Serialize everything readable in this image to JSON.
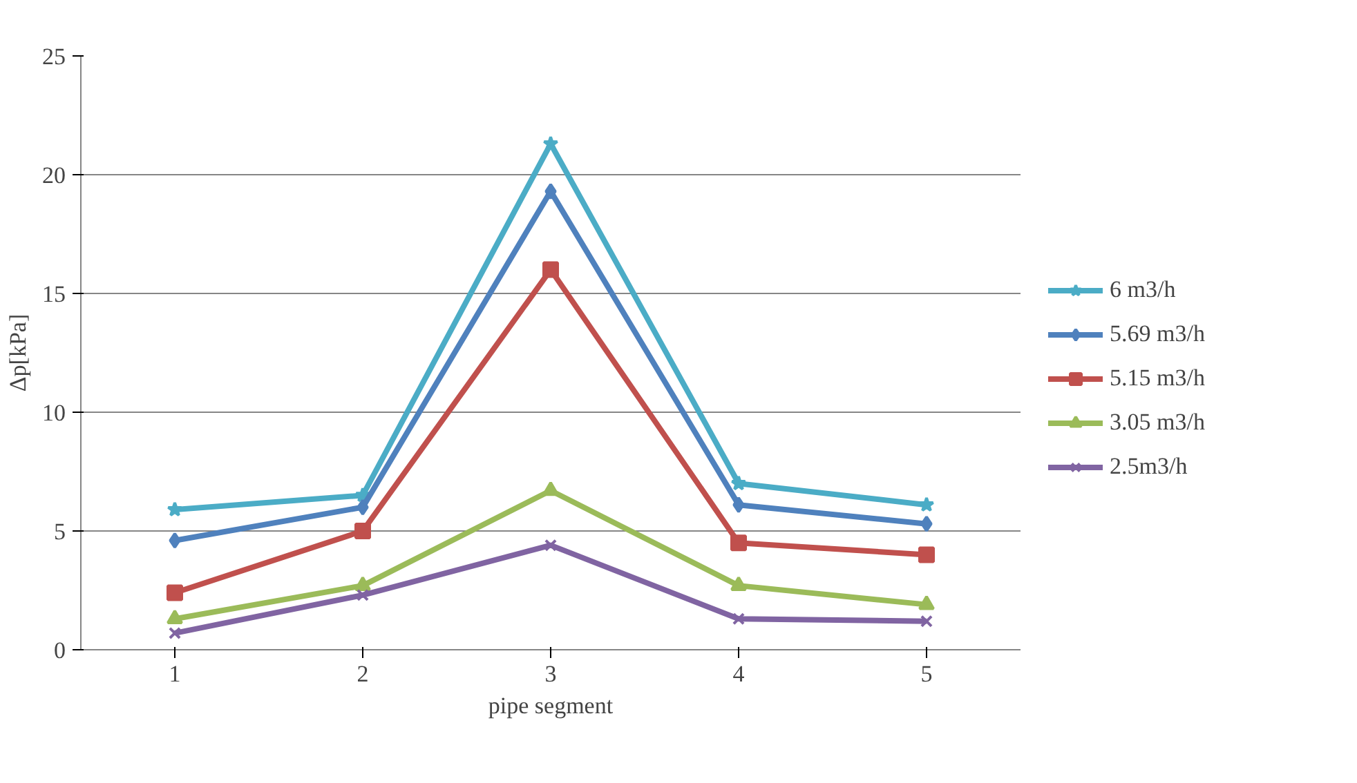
{
  "chart_data": {
    "type": "line",
    "xlabel": "pipe segment",
    "ylabel": "Δp[kPa]",
    "categories": [
      "1",
      "2",
      "3",
      "4",
      "5"
    ],
    "ylim": [
      0,
      25
    ],
    "yticks": [
      0,
      5,
      10,
      15,
      20,
      25
    ],
    "grid": "y",
    "legend": "right",
    "line_style": "solid",
    "series": [
      {
        "name": "6 m3/h",
        "color": "#4bacc6",
        "marker": "star",
        "values": [
          5.9,
          6.5,
          21.3,
          7.0,
          6.1
        ]
      },
      {
        "name": "5.69 m3/h",
        "color": "#4f81bd",
        "marker": "diamond",
        "values": [
          4.6,
          6.0,
          19.3,
          6.1,
          5.3
        ]
      },
      {
        "name": "5.15 m3/h",
        "color": "#c0504d",
        "marker": "square",
        "values": [
          2.4,
          5.0,
          16.0,
          4.5,
          4.0
        ]
      },
      {
        "name": "3.05 m3/h",
        "color": "#9bbb59",
        "marker": "triangle",
        "values": [
          1.3,
          2.7,
          6.7,
          2.7,
          1.9
        ]
      },
      {
        "name": "2.5m3/h",
        "color": "#8064a2",
        "marker": "cross",
        "values": [
          0.7,
          2.3,
          4.4,
          1.3,
          1.2
        ]
      }
    ]
  }
}
